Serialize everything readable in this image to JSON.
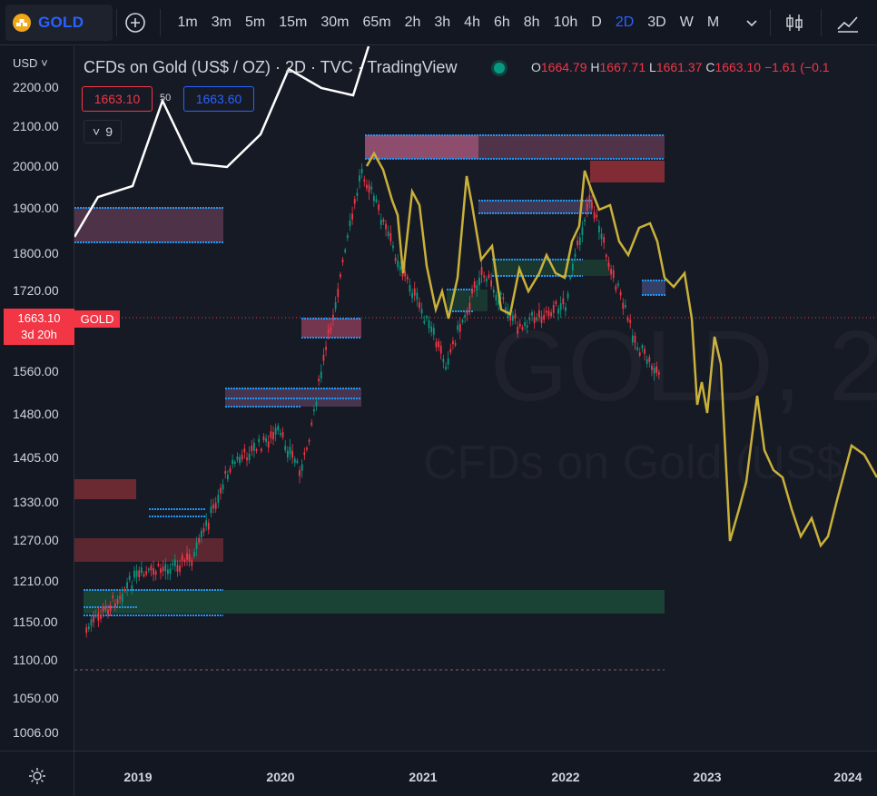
{
  "toolbar": {
    "symbol": "GOLD",
    "intervals": [
      "1m",
      "3m",
      "5m",
      "15m",
      "30m",
      "65m",
      "2h",
      "3h",
      "4h",
      "6h",
      "8h",
      "10h",
      "D",
      "2D",
      "3D",
      "W",
      "M"
    ],
    "active_interval": "2D",
    "icons": [
      "gold-coin-icon",
      "plus-circle-icon",
      "chevron-down-icon",
      "candlestick-icon",
      "indicators-icon"
    ]
  },
  "legend": {
    "title": "CFDs on Gold (US$ / OZ) · 2D · TVC · TradingView",
    "ohlc": {
      "o_label": "O",
      "o": "1664.79",
      "h_label": "H",
      "h": "1667.71",
      "l_label": "L",
      "l": "1661.37",
      "c_label": "C",
      "c": "1663.10",
      "change": "−1.61 (−0.1"
    }
  },
  "trade": {
    "sell_price": "1663.10",
    "spread": "50",
    "buy_price": "1663.60",
    "quantity": "9"
  },
  "price_axis": {
    "currency": "USD",
    "ticks": [
      "2200.00",
      "2100.00",
      "2000.00",
      "1900.00",
      "1800.00",
      "1720.00",
      "1560.00",
      "1480.00",
      "1405.00",
      "1330.00",
      "1270.00",
      "1210.00",
      "1150.00",
      "1100.00",
      "1050.00",
      "1006.00"
    ],
    "current_price": "1663.10",
    "countdown": "3d 20h",
    "symbol_tag": "GOLD"
  },
  "time_axis": {
    "ticks": [
      "2019",
      "2020",
      "2021",
      "2022",
      "2023",
      "2024"
    ]
  },
  "watermark": {
    "line1": "GOLD, 2",
    "line2": "CFDs on Gold (US$"
  },
  "chart_data": {
    "type": "line",
    "title": "CFDs on Gold (US$ / OZ)",
    "series": [
      {
        "name": "GOLD",
        "x": [
          "2018-09",
          "2019-01",
          "2019-06",
          "2019-09",
          "2020-01",
          "2020-03",
          "2020-08",
          "2020-11",
          "2021-03",
          "2021-06",
          "2021-09",
          "2022-01",
          "2022-03",
          "2022-05",
          "2022-07",
          "2022-09"
        ],
        "values": [
          1195,
          1290,
          1330,
          1500,
          1560,
          1490,
          2050,
          1880,
          1690,
          1860,
          1760,
          1800,
          2000,
          1850,
          1720,
          1663
        ]
      }
    ],
    "ylim": [
      1006,
      2200
    ],
    "xlim": [
      "2018-08",
      "2024-03"
    ],
    "grid": false
  }
}
